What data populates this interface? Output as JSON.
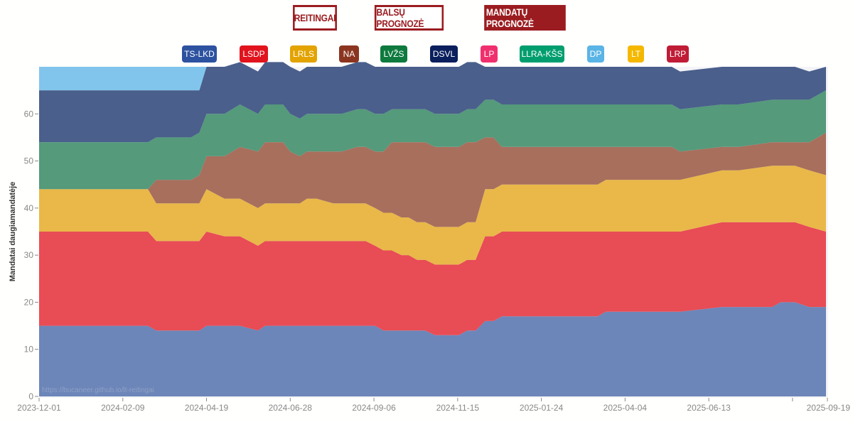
{
  "nav": {
    "items": [
      {
        "label": "REITINGAI",
        "active": false
      },
      {
        "label": "BALSŲ PROGNOZĖ",
        "active": false
      },
      {
        "label": "MANDATŲ PROGNOZĖ",
        "active": true
      }
    ]
  },
  "legend": [
    {
      "label": "TS-LKD",
      "color": "#2d52a0"
    },
    {
      "label": "LSDP",
      "color": "#e1141e"
    },
    {
      "label": "LRLS",
      "color": "#e3a300"
    },
    {
      "label": "NA",
      "color": "#8b3520"
    },
    {
      "label": "LVŽS",
      "color": "#0e7a3e"
    },
    {
      "label": "DSVL",
      "color": "#0a1f5c"
    },
    {
      "label": "LP",
      "color": "#f0306e"
    },
    {
      "label": "LLRA-KŠS",
      "color": "#009e6e"
    },
    {
      "label": "DP",
      "color": "#5ab4e5"
    },
    {
      "label": "LT",
      "color": "#f5b800"
    },
    {
      "label": "LRP",
      "color": "#c01c36"
    }
  ],
  "watermark": "https://bucaneer.github.io/lt-reitingai",
  "chart_data": {
    "type": "area",
    "stacked": true,
    "title": "",
    "xlabel": "",
    "ylabel": "Mandatai daugiamandatėje",
    "ylim": [
      0,
      70
    ],
    "xlim": [
      "2023-12-01",
      "2025-09-19"
    ],
    "yticks": [
      0,
      10,
      20,
      30,
      40,
      50,
      60
    ],
    "xticks": [
      "2023-12-01",
      "2024-02-09",
      "2024-04-19",
      "2024-06-28",
      "2024-09-06",
      "2024-11-15",
      "2025-01-24",
      "2025-04-04",
      "2025-06-13",
      "",
      "2025-09-19"
    ],
    "x": [
      "2023-12-01",
      "2024-03-01",
      "2024-03-08",
      "2024-03-30",
      "2024-04-06",
      "2024-04-13",
      "2024-04-19",
      "2024-05-04",
      "2024-05-17",
      "2024-06-01",
      "2024-06-07",
      "2024-06-22",
      "2024-06-28",
      "2024-07-06",
      "2024-07-12",
      "2024-07-20",
      "2024-08-03",
      "2024-08-10",
      "2024-08-23",
      "2024-08-30",
      "2024-09-07",
      "2024-09-14",
      "2024-09-21",
      "2024-09-29",
      "2024-10-05",
      "2024-10-12",
      "2024-10-19",
      "2024-10-27",
      "2024-11-02",
      "2024-11-16",
      "2024-11-23",
      "2024-11-30",
      "2024-12-08",
      "2024-12-15",
      "2024-12-22",
      "2024-12-29",
      "2025-01-05",
      "2025-03-12",
      "2025-03-19",
      "2025-04-29",
      "2025-05-06",
      "2025-05-13",
      "2025-05-20",
      "2025-06-24",
      "2025-07-01",
      "2025-07-08",
      "2025-08-05",
      "2025-08-12",
      "2025-08-24",
      "2025-09-05",
      "2025-09-19"
    ],
    "series": [
      {
        "name": "TS-LKD",
        "color": "#6c86b9",
        "values": [
          15,
          15,
          14,
          14,
          14,
          14,
          15,
          15,
          15,
          14,
          15,
          15,
          15,
          15,
          15,
          15,
          15,
          15,
          15,
          15,
          15,
          14,
          14,
          14,
          14,
          14,
          14,
          13,
          13,
          13,
          14,
          14,
          16,
          16,
          17,
          17,
          17,
          17,
          18,
          18,
          18,
          18,
          18,
          19,
          19,
          19,
          19,
          20,
          20,
          19,
          19
        ]
      },
      {
        "name": "LSDP",
        "color": "#e84c55",
        "values": [
          20,
          20,
          19,
          19,
          19,
          19,
          20,
          19,
          19,
          18,
          18,
          18,
          18,
          18,
          18,
          18,
          18,
          18,
          18,
          18,
          17,
          17,
          17,
          16,
          16,
          15,
          15,
          15,
          15,
          15,
          15,
          15,
          18,
          18,
          18,
          18,
          18,
          18,
          17,
          17,
          17,
          17,
          17,
          18,
          18,
          18,
          18,
          17,
          17,
          17,
          16
        ]
      },
      {
        "name": "LRLS",
        "color": "#e9b849",
        "values": [
          9,
          9,
          8,
          8,
          8,
          8,
          9,
          8,
          8,
          8,
          8,
          8,
          8,
          8,
          9,
          9,
          8,
          8,
          8,
          8,
          8,
          8,
          8,
          8,
          8,
          8,
          8,
          8,
          8,
          8,
          8,
          8,
          10,
          10,
          10,
          10,
          10,
          10,
          11,
          11,
          11,
          11,
          11,
          11,
          11,
          11,
          12,
          12,
          12,
          12,
          12
        ]
      },
      {
        "name": "NA",
        "color": "#a86f5d",
        "values": [
          0,
          0,
          5,
          5,
          5,
          6,
          7,
          9,
          11,
          12,
          13,
          13,
          11,
          10,
          10,
          10,
          11,
          11,
          12,
          12,
          12,
          13,
          15,
          16,
          16,
          17,
          17,
          17,
          17,
          17,
          17,
          17,
          11,
          11,
          8,
          8,
          8,
          8,
          7,
          7,
          7,
          7,
          6,
          5,
          5,
          5,
          5,
          5,
          5,
          6,
          9
        ]
      },
      {
        "name": "LVŽS",
        "color": "#549a7b",
        "values": [
          10,
          10,
          9,
          9,
          9,
          9,
          9,
          9,
          9,
          8,
          8,
          8,
          8,
          8,
          8,
          8,
          8,
          8,
          8,
          8,
          8,
          8,
          7,
          7,
          7,
          7,
          7,
          7,
          7,
          7,
          7,
          7,
          8,
          8,
          9,
          9,
          9,
          9,
          9,
          9,
          9,
          9,
          9,
          9,
          9,
          9,
          9,
          9,
          9,
          9,
          9
        ]
      },
      {
        "name": "DSVL",
        "color": "#4a5f8b",
        "values": [
          11,
          11,
          10,
          10,
          10,
          9,
          10,
          10,
          9,
          9,
          9,
          9,
          10,
          10,
          10,
          10,
          10,
          10,
          10,
          10,
          10,
          10,
          9,
          9,
          9,
          9,
          9,
          10,
          10,
          10,
          10,
          10,
          7,
          7,
          8,
          8,
          8,
          8,
          8,
          8,
          8,
          8,
          8,
          8,
          8,
          8,
          7,
          7,
          7,
          6,
          5
        ]
      },
      {
        "name": "DP",
        "color": "#82c5ec",
        "values": [
          5,
          5,
          5,
          5,
          5,
          5,
          0,
          0,
          0,
          0,
          0,
          0,
          0,
          0,
          0,
          0,
          0,
          0,
          0,
          0,
          0,
          0,
          0,
          0,
          0,
          0,
          0,
          0,
          0,
          0,
          0,
          0,
          0,
          0,
          0,
          0,
          0,
          0,
          0,
          0,
          0,
          0,
          0,
          0,
          0,
          0,
          0,
          0,
          0,
          0,
          0
        ]
      }
    ]
  }
}
